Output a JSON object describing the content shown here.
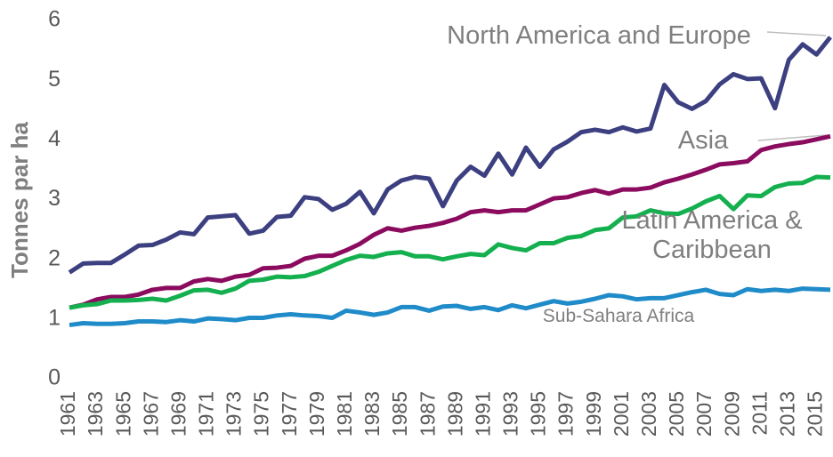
{
  "chart_data": {
    "type": "line",
    "y_label": "Tonnes par ha",
    "categories": [
      1961,
      null,
      1963,
      null,
      1965,
      null,
      1967,
      null,
      1969,
      null,
      1971,
      null,
      1973,
      null,
      1975,
      null,
      1977,
      null,
      1979,
      null,
      1981,
      null,
      1983,
      null,
      1985,
      null,
      1987,
      null,
      1989,
      null,
      1991,
      null,
      1993,
      null,
      1995,
      null,
      1997,
      null,
      1999,
      null,
      2001,
      null,
      2003,
      null,
      2005,
      null,
      2007,
      null,
      2009,
      null,
      2011,
      null,
      2013,
      null,
      2015,
      null
    ],
    "ylim": [
      0,
      6
    ],
    "yticks": [
      0,
      1,
      2,
      3,
      4,
      5,
      6
    ],
    "grid": false,
    "series": [
      {
        "name": "North America and Europe",
        "color": "#3c3f80",
        "values": [
          1.78,
          1.93,
          1.94,
          1.94,
          2.08,
          2.23,
          2.24,
          2.33,
          2.45,
          2.42,
          2.7,
          2.72,
          2.74,
          2.43,
          2.48,
          2.71,
          2.73,
          3.04,
          3.01,
          2.83,
          2.93,
          3.13,
          2.77,
          3.17,
          3.32,
          3.38,
          3.35,
          2.89,
          3.32,
          3.55,
          3.4,
          3.77,
          3.42,
          3.87,
          3.55,
          3.84,
          3.97,
          4.13,
          4.17,
          4.13,
          4.21,
          4.14,
          4.19,
          4.92,
          4.63,
          4.52,
          4.65,
          4.93,
          5.1,
          5.02,
          5.03,
          4.53,
          5.34,
          5.6,
          5.43,
          5.72
        ]
      },
      {
        "name": "Asia",
        "color": "#8b0b5f",
        "values": [
          1.19,
          1.24,
          1.33,
          1.37,
          1.37,
          1.41,
          1.49,
          1.52,
          1.52,
          1.63,
          1.67,
          1.64,
          1.71,
          1.74,
          1.85,
          1.86,
          1.89,
          2.01,
          2.06,
          2.06,
          2.15,
          2.26,
          2.41,
          2.52,
          2.48,
          2.53,
          2.56,
          2.61,
          2.68,
          2.79,
          2.82,
          2.79,
          2.82,
          2.82,
          2.92,
          3.02,
          3.04,
          3.11,
          3.16,
          3.1,
          3.17,
          3.17,
          3.2,
          3.29,
          3.35,
          3.42,
          3.5,
          3.59,
          3.61,
          3.64,
          3.83,
          3.89,
          3.93,
          3.96,
          4.01,
          4.06
        ]
      },
      {
        "name": "Latin America & Caribbean",
        "color": "#14b04f",
        "values": [
          1.19,
          1.23,
          1.25,
          1.31,
          1.31,
          1.32,
          1.34,
          1.31,
          1.39,
          1.48,
          1.49,
          1.44,
          1.51,
          1.64,
          1.66,
          1.71,
          1.7,
          1.72,
          1.79,
          1.89,
          1.99,
          2.06,
          2.04,
          2.1,
          2.12,
          2.05,
          2.05,
          2.0,
          2.05,
          2.09,
          2.07,
          2.25,
          2.19,
          2.15,
          2.27,
          2.27,
          2.36,
          2.39,
          2.49,
          2.52,
          2.7,
          2.72,
          2.82,
          2.77,
          2.76,
          2.85,
          2.97,
          3.06,
          2.84,
          3.07,
          3.06,
          3.21,
          3.27,
          3.28,
          3.38,
          3.37
        ]
      },
      {
        "name": "Sub-Sahara Africa",
        "color": "#1f8bc9",
        "values": [
          0.9,
          0.93,
          0.92,
          0.92,
          0.93,
          0.96,
          0.96,
          0.95,
          0.98,
          0.96,
          1.01,
          1.0,
          0.98,
          1.02,
          1.02,
          1.06,
          1.08,
          1.06,
          1.05,
          1.02,
          1.14,
          1.11,
          1.07,
          1.11,
          1.2,
          1.2,
          1.14,
          1.21,
          1.22,
          1.17,
          1.2,
          1.15,
          1.23,
          1.18,
          1.24,
          1.3,
          1.26,
          1.29,
          1.34,
          1.4,
          1.38,
          1.33,
          1.35,
          1.35,
          1.4,
          1.45,
          1.49,
          1.42,
          1.4,
          1.5,
          1.47,
          1.49,
          1.47,
          1.51,
          1.5,
          1.49
        ]
      }
    ]
  }
}
